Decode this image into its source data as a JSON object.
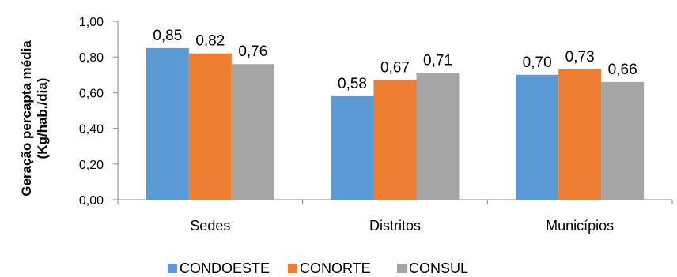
{
  "chart_data": {
    "type": "bar",
    "categories": [
      "Sedes",
      "Distritos",
      "Municípios"
    ],
    "series": [
      {
        "name": "CONDOESTE",
        "values": [
          0.85,
          0.58,
          0.7
        ],
        "labels": [
          "0,85",
          "0,58",
          "0,70"
        ],
        "color": "#5B9BD5"
      },
      {
        "name": "CONORTE",
        "values": [
          0.82,
          0.67,
          0.73
        ],
        "labels": [
          "0,82",
          "0,67",
          "0,73"
        ],
        "color": "#ED7D31"
      },
      {
        "name": "CONSUL",
        "values": [
          0.76,
          0.71,
          0.66
        ],
        "labels": [
          "0,76",
          "0,71",
          "0,66"
        ],
        "color": "#A5A5A5"
      }
    ],
    "ylabel_line1": "Geração percapta média",
    "ylabel_line2": "(Kg/hab./dia)",
    "ylim": [
      0,
      1.0
    ],
    "yticks": [
      0,
      0.2,
      0.4,
      0.6,
      0.8,
      1.0
    ],
    "ytick_labels": [
      "0,00",
      "0,20",
      "0,40",
      "0,60",
      "0,80",
      "1,00"
    ],
    "grid": false,
    "legend_position": "bottom"
  }
}
